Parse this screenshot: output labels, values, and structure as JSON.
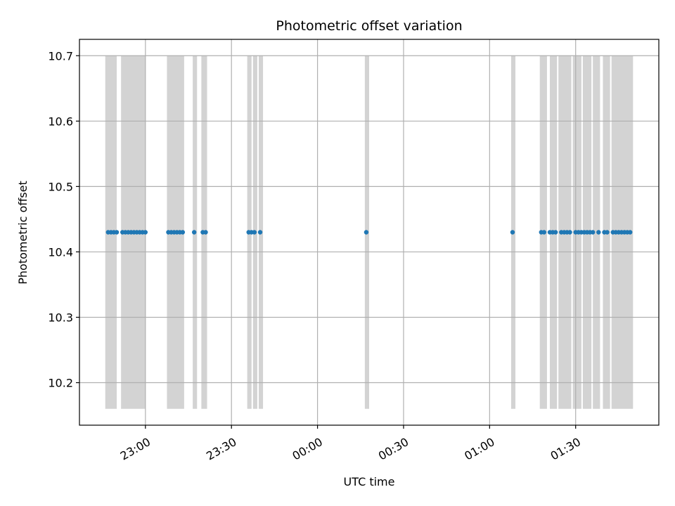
{
  "chart_data": {
    "type": "scatter",
    "title": "Photometric offset variation",
    "xlabel": "UTC time",
    "ylabel": "Photometric offset",
    "x_axis": {
      "kind": "time",
      "range": [
        "22:37",
        "01:59"
      ],
      "ticks": [
        "23:00",
        "23:30",
        "00:00",
        "00:30",
        "01:00",
        "01:30"
      ]
    },
    "ylim": [
      10.135,
      10.725
    ],
    "yticks": [
      "10.2",
      "10.3",
      "10.4",
      "10.5",
      "10.6",
      "10.7"
    ],
    "grid": true,
    "band_y": [
      10.16,
      10.7
    ],
    "band_color": "#d3d3d3",
    "point_color": "#1f77b4",
    "series": [
      {
        "values": [
          {
            "x": "22:47:00",
            "y": 10.43
          },
          {
            "x": "22:48:00",
            "y": 10.43
          },
          {
            "x": "22:49:00",
            "y": 10.43
          },
          {
            "x": "22:50:00",
            "y": 10.43
          },
          {
            "x": "22:52:00",
            "y": 10.43
          },
          {
            "x": "22:53:00",
            "y": 10.43
          },
          {
            "x": "22:54:00",
            "y": 10.43
          },
          {
            "x": "22:55:00",
            "y": 10.43
          },
          {
            "x": "22:56:00",
            "y": 10.43
          },
          {
            "x": "22:57:00",
            "y": 10.43
          },
          {
            "x": "22:58:00",
            "y": 10.43
          },
          {
            "x": "22:59:00",
            "y": 10.43
          },
          {
            "x": "23:00:00",
            "y": 10.43
          },
          {
            "x": "23:08:00",
            "y": 10.43
          },
          {
            "x": "23:09:00",
            "y": 10.43
          },
          {
            "x": "23:10:00",
            "y": 10.43
          },
          {
            "x": "23:11:00",
            "y": 10.43
          },
          {
            "x": "23:12:00",
            "y": 10.43
          },
          {
            "x": "23:13:00",
            "y": 10.43
          },
          {
            "x": "23:17:00",
            "y": 10.43
          },
          {
            "x": "23:20:00",
            "y": 10.43
          },
          {
            "x": "23:21:00",
            "y": 10.43
          },
          {
            "x": "23:36:00",
            "y": 10.43
          },
          {
            "x": "23:37:00",
            "y": 10.43
          },
          {
            "x": "23:38:00",
            "y": 10.43
          },
          {
            "x": "23:40:00",
            "y": 10.43
          },
          {
            "x": "00:17:00",
            "y": 10.43
          },
          {
            "x": "01:08:00",
            "y": 10.43
          },
          {
            "x": "01:18:00",
            "y": 10.43
          },
          {
            "x": "01:19:00",
            "y": 10.43
          },
          {
            "x": "01:21:00",
            "y": 10.43
          },
          {
            "x": "01:22:00",
            "y": 10.43
          },
          {
            "x": "01:23:00",
            "y": 10.43
          },
          {
            "x": "01:25:00",
            "y": 10.43
          },
          {
            "x": "01:26:00",
            "y": 10.43
          },
          {
            "x": "01:27:00",
            "y": 10.43
          },
          {
            "x": "01:28:00",
            "y": 10.43
          },
          {
            "x": "01:30:00",
            "y": 10.43
          },
          {
            "x": "01:31:00",
            "y": 10.43
          },
          {
            "x": "01:32:00",
            "y": 10.43
          },
          {
            "x": "01:33:00",
            "y": 10.43
          },
          {
            "x": "01:34:00",
            "y": 10.43
          },
          {
            "x": "01:35:00",
            "y": 10.43
          },
          {
            "x": "01:36:00",
            "y": 10.43
          },
          {
            "x": "01:38:00",
            "y": 10.43
          },
          {
            "x": "01:40:00",
            "y": 10.43
          },
          {
            "x": "01:41:00",
            "y": 10.43
          },
          {
            "x": "01:43:00",
            "y": 10.43
          },
          {
            "x": "01:44:00",
            "y": 10.43
          },
          {
            "x": "01:45:00",
            "y": 10.43
          },
          {
            "x": "01:46:00",
            "y": 10.43
          },
          {
            "x": "01:47:00",
            "y": 10.43
          },
          {
            "x": "01:48:00",
            "y": 10.43
          },
          {
            "x": "01:49:00",
            "y": 10.43
          }
        ]
      }
    ],
    "bands": [
      {
        "start": "22:46:00",
        "end": "22:50:00"
      },
      {
        "start": "22:51:30",
        "end": "23:00:00"
      },
      {
        "start": "23:07:30",
        "end": "23:13:30"
      },
      {
        "start": "23:16:30",
        "end": "23:18:00"
      },
      {
        "start": "23:19:30",
        "end": "23:21:30"
      },
      {
        "start": "23:35:30",
        "end": "23:37:00"
      },
      {
        "start": "23:37:30",
        "end": "23:39:00"
      },
      {
        "start": "23:39:30",
        "end": "23:41:00"
      },
      {
        "start": "00:16:30",
        "end": "00:18:00"
      },
      {
        "start": "01:07:30",
        "end": "01:09:00"
      },
      {
        "start": "01:17:30",
        "end": "01:20:00"
      },
      {
        "start": "01:21:00",
        "end": "01:23:30"
      },
      {
        "start": "01:24:00",
        "end": "01:28:30"
      },
      {
        "start": "01:29:00",
        "end": "01:32:00"
      },
      {
        "start": "01:32:30",
        "end": "01:35:30"
      },
      {
        "start": "01:36:00",
        "end": "01:38:30"
      },
      {
        "start": "01:39:30",
        "end": "01:42:00"
      },
      {
        "start": "01:42:30",
        "end": "01:50:00"
      }
    ]
  }
}
